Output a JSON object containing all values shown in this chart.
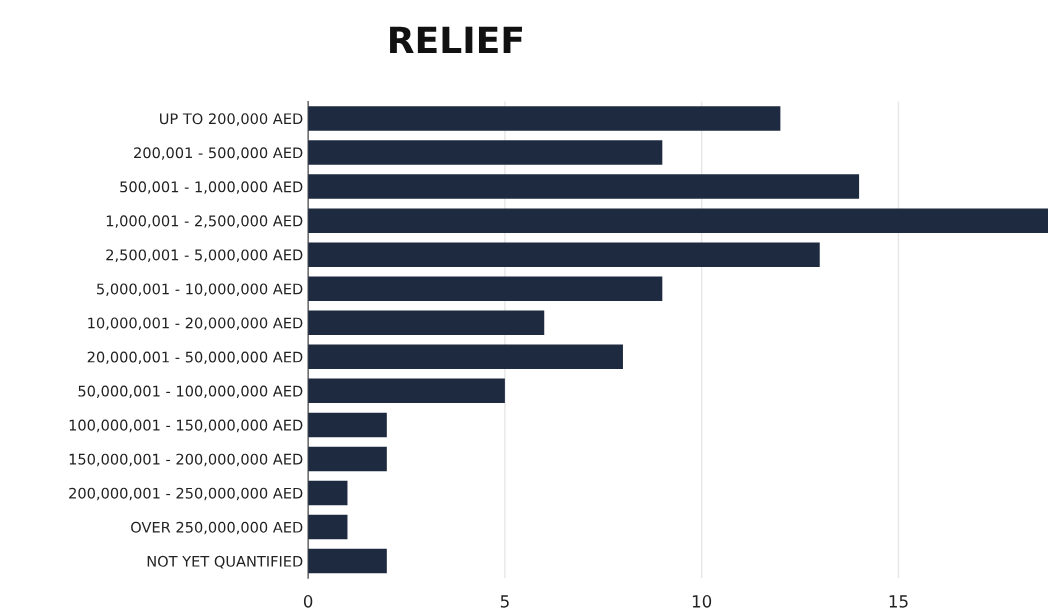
{
  "chart_data": {
    "type": "bar",
    "orientation": "horizontal",
    "title": "RELIEF",
    "categories": [
      "UP TO 200,000 AED",
      "200,001 - 500,000 AED",
      "500,001 - 1,000,000 AED",
      "1,000,001 - 2,500,000 AED",
      "2,500,001 - 5,000,000 AED",
      "5,000,001 - 10,000,000 AED",
      "10,000,001 - 20,000,000 AED",
      "20,000,001 - 50,000,000 AED",
      "50,000,001 - 100,000,000 AED",
      "100,000,001 - 150,000,000 AED",
      "150,000,001 - 200,000,000 AED",
      "200,000,001 - 250,000,000 AED",
      "OVER 250,000,000 AED",
      "NOT YET QUANTIFIED"
    ],
    "values": [
      12,
      9,
      14,
      18.8,
      13,
      9,
      6,
      8,
      5,
      2,
      2,
      1,
      1,
      2
    ],
    "color": "#1e2a3f",
    "xlim": [
      0,
      18.8
    ],
    "xticks": [
      0,
      5,
      10,
      15
    ],
    "grid": "x"
  }
}
